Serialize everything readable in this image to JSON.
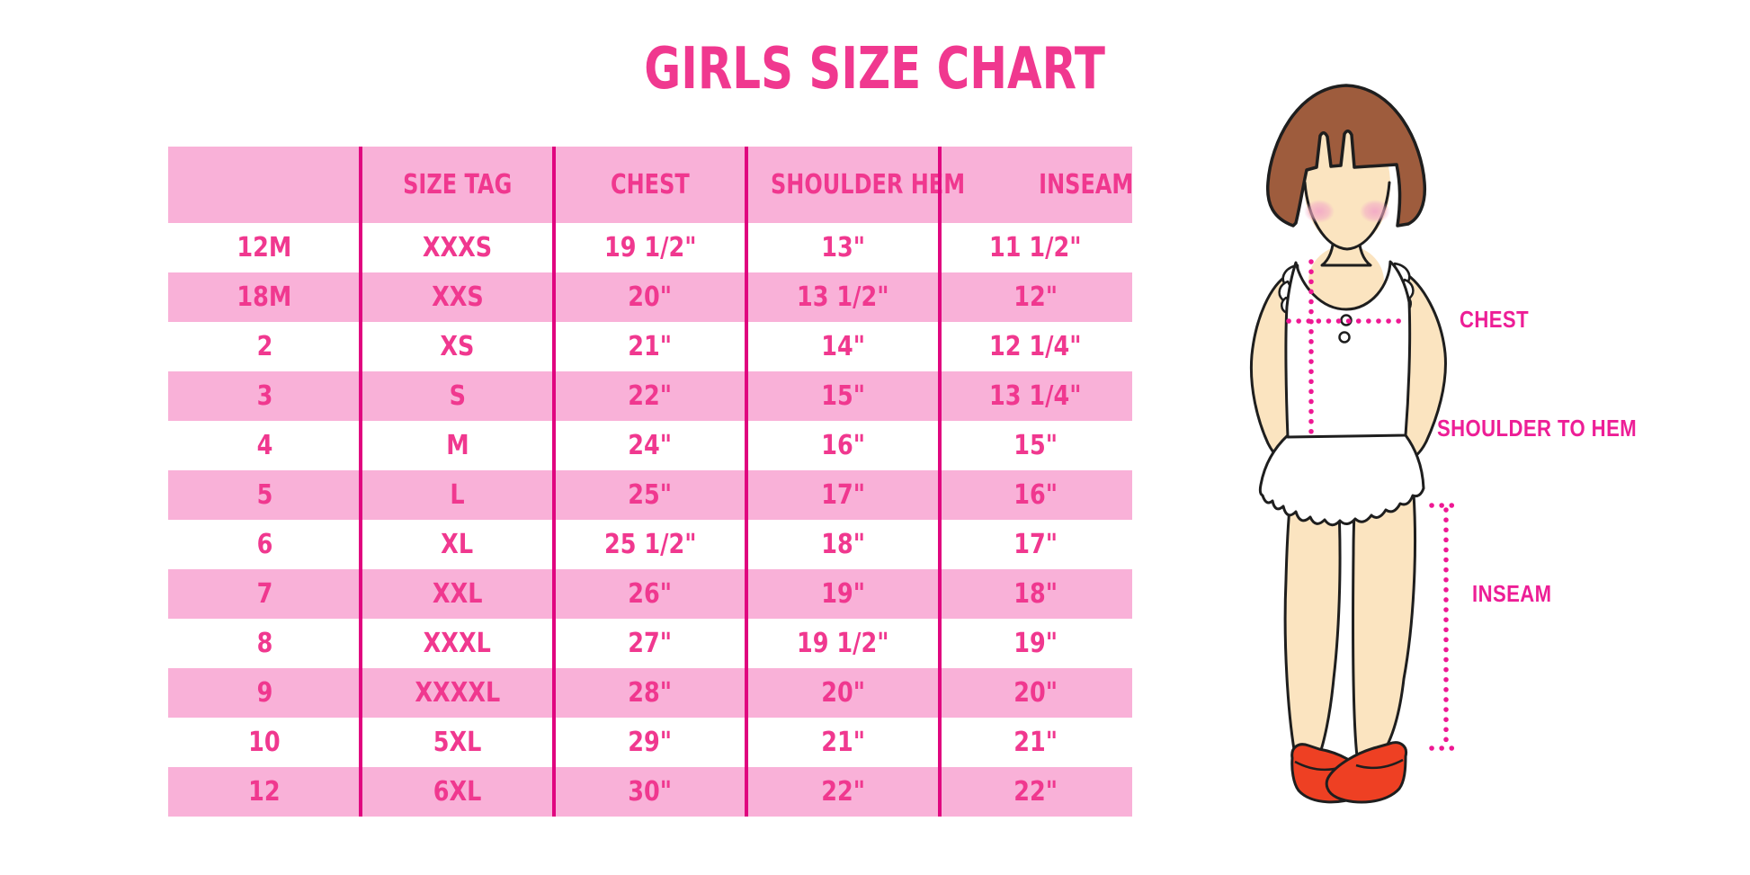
{
  "title": "GIRLS SIZE CHART",
  "chart_data": {
    "type": "table",
    "columns": [
      "",
      "SIZE TAG",
      "CHEST",
      "SHOULDER HEM",
      "INSEAM"
    ],
    "rows": [
      [
        "12M",
        "XXXS",
        "19 1/2\"",
        "13\"",
        "11 1/2\""
      ],
      [
        "18M",
        "XXS",
        "20\"",
        "13 1/2\"",
        "12\""
      ],
      [
        "2",
        "XS",
        "21\"",
        "14\"",
        "12 1/4\""
      ],
      [
        "3",
        "S",
        "22\"",
        "15\"",
        "13 1/4\""
      ],
      [
        "4",
        "M",
        "24\"",
        "16\"",
        "15\""
      ],
      [
        "5",
        "L",
        "25\"",
        "17\"",
        "16\""
      ],
      [
        "6",
        "XL",
        "25 1/2\"",
        "18\"",
        "17\""
      ],
      [
        "7",
        "XXL",
        "26\"",
        "19\"",
        "18\""
      ],
      [
        "8",
        "XXXL",
        "27\"",
        "19 1/2\"",
        "19\""
      ],
      [
        "9",
        "XXXXL",
        "28\"",
        "20\"",
        "20\""
      ],
      [
        "10",
        "5XL",
        "29\"",
        "21\"",
        "21\""
      ],
      [
        "12",
        "6XL",
        "30\"",
        "22\"",
        "22\""
      ]
    ],
    "row_stripe_pattern": "white/pink alternating, header pink",
    "grid": "vertical magenta separators only, no horizontal lines"
  },
  "diagram": {
    "labels": {
      "chest": "CHEST",
      "shoulder_to_hem": "SHOULDER TO HEM",
      "inseam": "INSEAM"
    }
  },
  "colors": {
    "title_pink": "#F0388F",
    "row_pink": "#F9B1D8",
    "separator_magenta": "#E0067F",
    "label_magenta": "#ED1E96",
    "dotted_line_magenta": "#EE1893",
    "hair_brown": "#9E5C3D",
    "skin": "#FBE4C0",
    "blush_pink": "#F2A9C6",
    "shoe_red": "#EE4023",
    "outline_black": "#1E1E1E"
  }
}
